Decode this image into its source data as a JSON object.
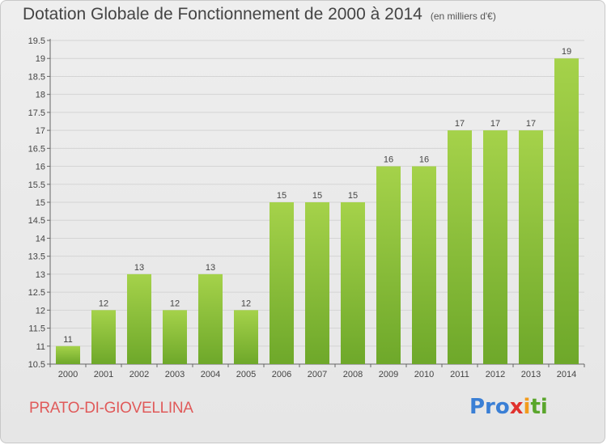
{
  "header": {
    "title": "Dotation Globale de Fonctionnement de 2000 à 2014",
    "unit": "(en milliers d'€)"
  },
  "commune": "PRATO-DI-GIOVELLINA",
  "logo": {
    "p1": "Pro",
    "p2": "x",
    "p3": "i",
    "p4": "ti",
    "full": "Proxiti"
  },
  "colors": {
    "bar_top": "#a5d24a",
    "bar_bottom": "#6ea82a",
    "grid": "#d4d4d4",
    "commune": "#e05a5a"
  },
  "chart_data": {
    "type": "bar",
    "categories": [
      "2000",
      "2001",
      "2002",
      "2003",
      "2004",
      "2005",
      "2006",
      "2007",
      "2008",
      "2009",
      "2010",
      "2011",
      "2012",
      "2013",
      "2014"
    ],
    "values": [
      11,
      12,
      13,
      12,
      13,
      12,
      15,
      15,
      15,
      16,
      16,
      17,
      17,
      17,
      19
    ],
    "data_labels": [
      "11",
      "12",
      "13",
      "12",
      "13",
      "12",
      "15",
      "15",
      "15",
      "16",
      "16",
      "17",
      "17",
      "17",
      "19"
    ],
    "yticks": [
      "10.5",
      "11",
      "11.5",
      "12",
      "12.5",
      "13",
      "13.5",
      "14",
      "14.5",
      "15",
      "15.5",
      "16",
      "16.5",
      "17",
      "17.5",
      "18",
      "18.5",
      "19",
      "19.5"
    ],
    "ylim": [
      10.5,
      19.5
    ],
    "grid": true
  }
}
